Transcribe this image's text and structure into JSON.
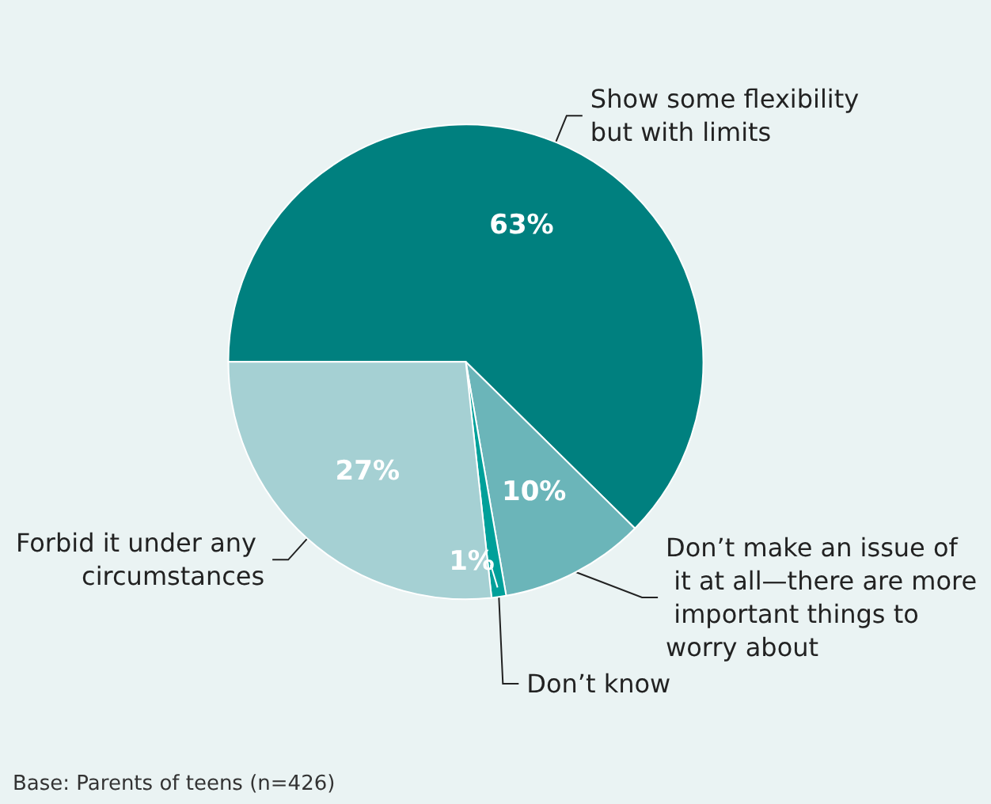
{
  "chart_data": {
    "type": "pie",
    "categories": [
      "Show some flexibility but with limits",
      "Don’t make an issue of it at all—there are more important things to worry about",
      "Don’t know",
      "Forbid it under any circumstances"
    ],
    "values": [
      63,
      10,
      1,
      27
    ],
    "value_labels": [
      "63%",
      "10%",
      "1%",
      "27%"
    ],
    "colors": [
      "#00807f",
      "#6bb5b9",
      "#00a09a",
      "#a5d0d3"
    ],
    "annotations": [
      "Base: Parents of teens (n=426)"
    ]
  }
}
